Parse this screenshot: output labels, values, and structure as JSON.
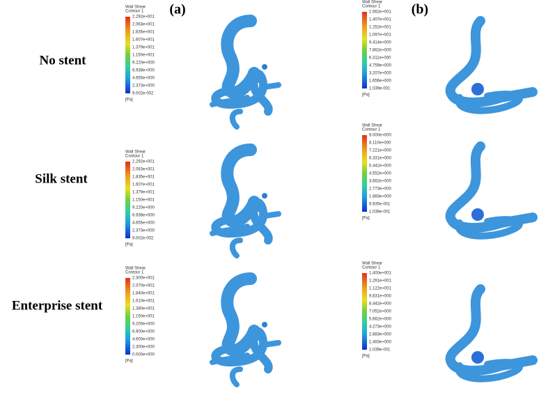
{
  "panel_labels": [
    "(a)",
    "(b)"
  ],
  "rows": [
    {
      "label": "No stent",
      "legends": [
        {
          "title": "Wall Shear",
          "subtitle": "Contour 1",
          "unit": "[Pa]",
          "ticks": [
            "2.292e+001",
            "2.063e+001",
            "1.835e+001",
            "1.607e+001",
            "1.379e+001",
            "1.150e+001",
            "9.220e+000",
            "6.938e+000",
            "4.655e+000",
            "2.373e+000",
            "9.002e-002"
          ]
        },
        {
          "title": "Wall Shear",
          "subtitle": "Contour 1",
          "unit": "[Pa]",
          "ticks": [
            "1.562e+001",
            "1.407e+001",
            "1.252e+001",
            "1.097e+001",
            "9.414e+000",
            "7.862e+000",
            "6.311e+000",
            "4.759e+000",
            "3.207e+000",
            "1.656e+000",
            "1.039e-001"
          ]
        }
      ]
    },
    {
      "label": "Silk stent",
      "legends": [
        {
          "title": "Wall Shear",
          "subtitle": "Contour 1",
          "unit": "[Pa]",
          "ticks": [
            "2.292e+001",
            "2.063e+001",
            "1.835e+001",
            "1.607e+001",
            "1.379e+001",
            "1.150e+001",
            "9.220e+000",
            "6.938e+000",
            "4.655e+000",
            "2.373e+000",
            "9.002e-002"
          ]
        },
        {
          "title": "Wall Shear",
          "subtitle": "Contour 1",
          "unit": "[Pa]",
          "ticks": [
            "9.000e+000",
            "8.110e+000",
            "7.221e+000",
            "6.331e+000",
            "5.442e+000",
            "4.552e+000",
            "3.662e+000",
            "2.773e+000",
            "1.883e+000",
            "9.935e-001",
            "1.039e-001"
          ]
        }
      ]
    },
    {
      "label": "Enterprise stent",
      "legends": [
        {
          "title": "Wall Shear",
          "subtitle": "Contour 1",
          "unit": "[Pa]",
          "ticks": [
            "2.300e+001",
            "2.070e+001",
            "1.840e+001",
            "1.610e+001",
            "1.380e+001",
            "1.150e+001",
            "9.200e+000",
            "6.900e+000",
            "4.600e+000",
            "2.300e+000",
            "0.000e+000"
          ]
        },
        {
          "title": "Wall Shear",
          "subtitle": "Contour 1",
          "unit": "[Pa]",
          "ticks": [
            "1.400e+001",
            "1.261e+001",
            "1.122e+001",
            "9.831e+000",
            "8.442e+000",
            "7.052e+000",
            "5.662e+000",
            "4.273e+000",
            "2.883e+000",
            "1.493e+000",
            "1.039e-001"
          ]
        }
      ]
    }
  ]
}
